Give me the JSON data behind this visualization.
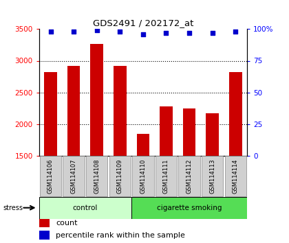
{
  "title": "GDS2491 / 202172_at",
  "samples": [
    "GSM114106",
    "GSM114107",
    "GSM114108",
    "GSM114109",
    "GSM114110",
    "GSM114111",
    "GSM114112",
    "GSM114113",
    "GSM114114"
  ],
  "counts": [
    2820,
    2920,
    3270,
    2920,
    1840,
    2280,
    2240,
    2170,
    2820
  ],
  "percentile_ranks": [
    98,
    98,
    99,
    98,
    96,
    97,
    97,
    97,
    98
  ],
  "groups": [
    {
      "label": "control",
      "start": 0,
      "end": 4,
      "color": "#ccffcc"
    },
    {
      "label": "cigarette smoking",
      "start": 4,
      "end": 9,
      "color": "#55dd55"
    }
  ],
  "stress_label": "stress",
  "ylim_left": [
    1500,
    3500
  ],
  "ylim_right": [
    0,
    100
  ],
  "right_ticks": [
    0,
    25,
    50,
    75,
    100
  ],
  "right_tick_labels": [
    "0",
    "25",
    "50",
    "75",
    "100%"
  ],
  "left_ticks": [
    1500,
    2000,
    2500,
    3000,
    3500
  ],
  "bar_color": "#cc0000",
  "dot_color": "#0000cc",
  "bar_width": 0.55,
  "legend_count_label": "count",
  "legend_pct_label": "percentile rank within the sample"
}
